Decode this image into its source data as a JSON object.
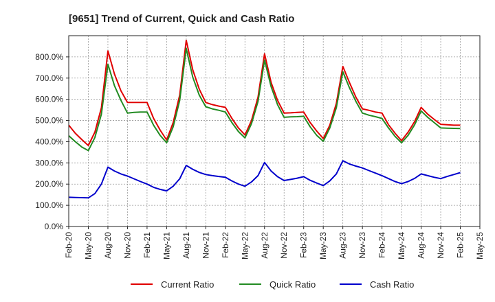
{
  "chart_data": {
    "type": "line",
    "title": "[9651]  Trend of Current, Quick and Cash Ratio",
    "xlabel": "",
    "ylabel": "",
    "ylim": [
      0,
      900
    ],
    "y_ticks": [
      0,
      100,
      200,
      300,
      400,
      500,
      600,
      700,
      800
    ],
    "y_tick_labels": [
      "0.0%",
      "100.0%",
      "200.0%",
      "300.0%",
      "400.0%",
      "500.0%",
      "600.0%",
      "700.0%",
      "800.0%"
    ],
    "x_tick_labels": [
      "Feb-20",
      "May-20",
      "Aug-20",
      "Nov-20",
      "Feb-21",
      "May-21",
      "Aug-21",
      "Nov-21",
      "Feb-22",
      "May-22",
      "Aug-22",
      "Nov-22",
      "Feb-23",
      "May-23",
      "Aug-23",
      "Nov-23",
      "Feb-24",
      "May-24",
      "Aug-24",
      "Nov-24",
      "Feb-25",
      "May-25"
    ],
    "x_start_month_index": 0,
    "x_end_month_index": 63,
    "grid": true,
    "legend_position": "bottom",
    "series": [
      {
        "name": "Current Ratio",
        "color": "#e00000",
        "points": [
          [
            0,
            478
          ],
          [
            1,
            440
          ],
          [
            2,
            410
          ],
          [
            3,
            382
          ],
          [
            4,
            445
          ],
          [
            5,
            560
          ],
          [
            6,
            828
          ],
          [
            7,
            720
          ],
          [
            8,
            640
          ],
          [
            9,
            585
          ],
          [
            10,
            585
          ],
          [
            11,
            585
          ],
          [
            12,
            585
          ],
          [
            13,
            510
          ],
          [
            14,
            455
          ],
          [
            15,
            408
          ],
          [
            16,
            490
          ],
          [
            17,
            620
          ],
          [
            18,
            878
          ],
          [
            19,
            740
          ],
          [
            20,
            648
          ],
          [
            21,
            585
          ],
          [
            22,
            575
          ],
          [
            23,
            568
          ],
          [
            24,
            562
          ],
          [
            25,
            510
          ],
          [
            26,
            465
          ],
          [
            27,
            432
          ],
          [
            28,
            500
          ],
          [
            29,
            610
          ],
          [
            30,
            815
          ],
          [
            31,
            680
          ],
          [
            32,
            595
          ],
          [
            33,
            535
          ],
          [
            34,
            536
          ],
          [
            35,
            538
          ],
          [
            36,
            540
          ],
          [
            37,
            490
          ],
          [
            38,
            450
          ],
          [
            39,
            415
          ],
          [
            40,
            478
          ],
          [
            41,
            580
          ],
          [
            42,
            755
          ],
          [
            43,
            680
          ],
          [
            44,
            610
          ],
          [
            45,
            555
          ],
          [
            46,
            548
          ],
          [
            47,
            540
          ],
          [
            48,
            535
          ],
          [
            49,
            480
          ],
          [
            50,
            440
          ],
          [
            51,
            405
          ],
          [
            52,
            445
          ],
          [
            53,
            495
          ],
          [
            54,
            562
          ],
          [
            55,
            530
          ],
          [
            56,
            505
          ],
          [
            57,
            482
          ],
          [
            58,
            480
          ],
          [
            59,
            478
          ],
          [
            60,
            478
          ]
        ]
      },
      {
        "name": "Quick Ratio",
        "color": "#228b22",
        "points": [
          [
            0,
            428
          ],
          [
            1,
            400
          ],
          [
            2,
            375
          ],
          [
            3,
            358
          ],
          [
            4,
            420
          ],
          [
            5,
            530
          ],
          [
            6,
            765
          ],
          [
            7,
            665
          ],
          [
            8,
            595
          ],
          [
            9,
            535
          ],
          [
            10,
            538
          ],
          [
            11,
            540
          ],
          [
            12,
            540
          ],
          [
            13,
            478
          ],
          [
            14,
            430
          ],
          [
            15,
            395
          ],
          [
            16,
            470
          ],
          [
            17,
            595
          ],
          [
            18,
            840
          ],
          [
            19,
            705
          ],
          [
            20,
            620
          ],
          [
            21,
            565
          ],
          [
            22,
            555
          ],
          [
            23,
            548
          ],
          [
            24,
            540
          ],
          [
            25,
            490
          ],
          [
            26,
            448
          ],
          [
            27,
            418
          ],
          [
            28,
            485
          ],
          [
            29,
            590
          ],
          [
            30,
            785
          ],
          [
            31,
            660
          ],
          [
            32,
            575
          ],
          [
            33,
            515
          ],
          [
            34,
            517
          ],
          [
            35,
            518
          ],
          [
            36,
            520
          ],
          [
            37,
            470
          ],
          [
            38,
            430
          ],
          [
            39,
            402
          ],
          [
            40,
            465
          ],
          [
            41,
            560
          ],
          [
            42,
            730
          ],
          [
            43,
            655
          ],
          [
            44,
            590
          ],
          [
            45,
            535
          ],
          [
            46,
            525
          ],
          [
            47,
            518
          ],
          [
            48,
            510
          ],
          [
            49,
            465
          ],
          [
            50,
            425
          ],
          [
            51,
            395
          ],
          [
            52,
            430
          ],
          [
            53,
            480
          ],
          [
            54,
            545
          ],
          [
            55,
            515
          ],
          [
            56,
            490
          ],
          [
            57,
            465
          ],
          [
            58,
            464
          ],
          [
            59,
            463
          ],
          [
            60,
            462
          ]
        ]
      },
      {
        "name": "Cash Ratio",
        "color": "#0000cc",
        "points": [
          [
            0,
            138
          ],
          [
            1,
            137
          ],
          [
            2,
            136
          ],
          [
            3,
            135
          ],
          [
            4,
            155
          ],
          [
            5,
            200
          ],
          [
            6,
            280
          ],
          [
            7,
            262
          ],
          [
            8,
            248
          ],
          [
            9,
            238
          ],
          [
            10,
            225
          ],
          [
            11,
            212
          ],
          [
            12,
            200
          ],
          [
            13,
            185
          ],
          [
            14,
            175
          ],
          [
            15,
            168
          ],
          [
            16,
            190
          ],
          [
            17,
            225
          ],
          [
            18,
            288
          ],
          [
            19,
            270
          ],
          [
            20,
            255
          ],
          [
            21,
            245
          ],
          [
            22,
            240
          ],
          [
            23,
            236
          ],
          [
            24,
            232
          ],
          [
            25,
            215
          ],
          [
            26,
            200
          ],
          [
            27,
            190
          ],
          [
            28,
            210
          ],
          [
            29,
            240
          ],
          [
            30,
            302
          ],
          [
            31,
            262
          ],
          [
            32,
            235
          ],
          [
            33,
            217
          ],
          [
            34,
            222
          ],
          [
            35,
            228
          ],
          [
            36,
            235
          ],
          [
            37,
            218
          ],
          [
            38,
            205
          ],
          [
            39,
            193
          ],
          [
            40,
            215
          ],
          [
            41,
            248
          ],
          [
            42,
            310
          ],
          [
            43,
            295
          ],
          [
            44,
            285
          ],
          [
            45,
            276
          ],
          [
            46,
            264
          ],
          [
            47,
            252
          ],
          [
            48,
            240
          ],
          [
            49,
            226
          ],
          [
            50,
            212
          ],
          [
            51,
            202
          ],
          [
            52,
            212
          ],
          [
            53,
            227
          ],
          [
            54,
            248
          ],
          [
            55,
            240
          ],
          [
            56,
            232
          ],
          [
            57,
            226
          ],
          [
            58,
            236
          ],
          [
            59,
            245
          ],
          [
            60,
            254
          ]
        ]
      }
    ]
  }
}
